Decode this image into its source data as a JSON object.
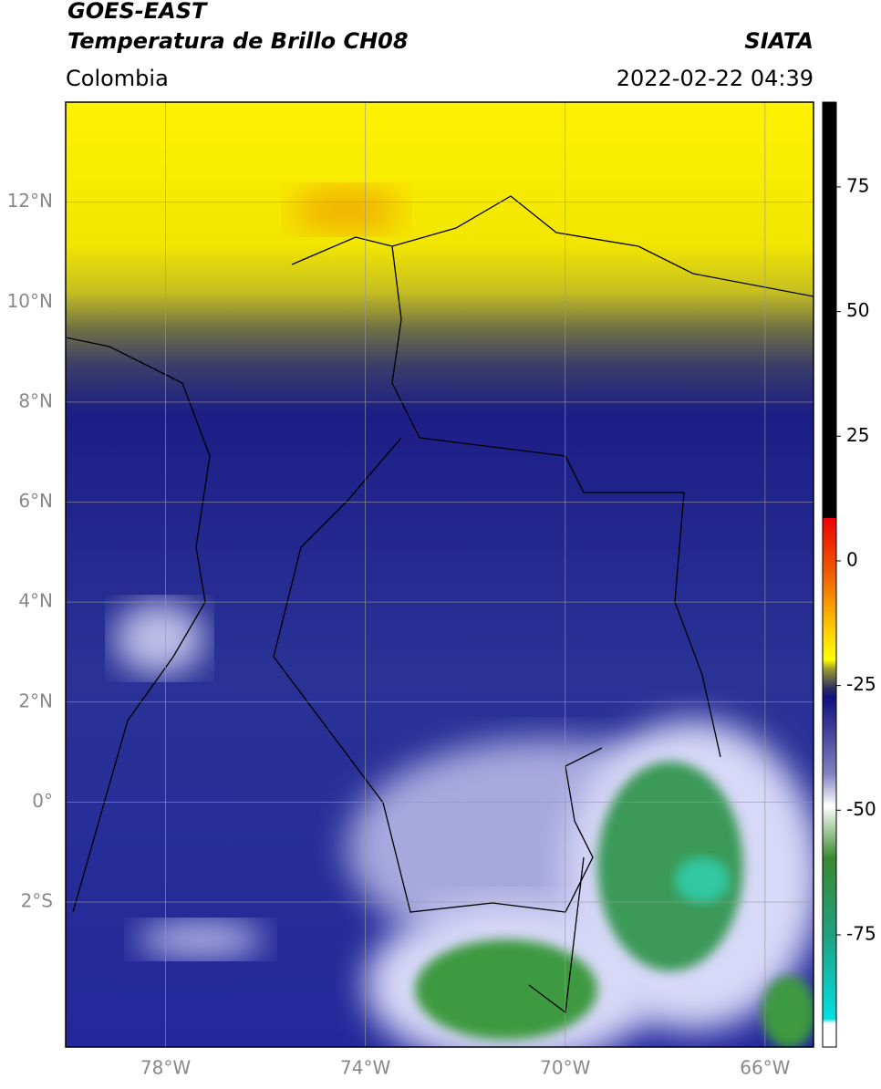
{
  "header": {
    "title": "GOES-EAST",
    "subtitle": "Temperatura de Brillo CH08",
    "source": "SIATA",
    "region": "Colombia",
    "datetime": "2022-02-22 04:39"
  },
  "map": {
    "latlim": [
      -4.9,
      14
    ],
    "lonlim": [
      -80,
      -65.03
    ],
    "lat_ticks": [
      {
        "value": 12,
        "label": "12°N"
      },
      {
        "value": 10,
        "label": "10°N"
      },
      {
        "value": 8,
        "label": "8°N"
      },
      {
        "value": 6,
        "label": "6°N"
      },
      {
        "value": 4,
        "label": "4°N"
      },
      {
        "value": 2,
        "label": "2°N"
      },
      {
        "value": 0,
        "label": "0°"
      },
      {
        "value": -2,
        "label": "2°S"
      }
    ],
    "lon_ticks": [
      {
        "value": -78,
        "label": "78°W"
      },
      {
        "value": -74,
        "label": "74°W"
      },
      {
        "value": -70,
        "label": "70°W"
      },
      {
        "value": -66,
        "label": "66°W"
      }
    ]
  },
  "colorbar": {
    "lim": [
      -97.5,
      92
    ],
    "ticks": [
      75,
      50,
      25,
      0,
      -25,
      -50,
      -75
    ]
  }
}
